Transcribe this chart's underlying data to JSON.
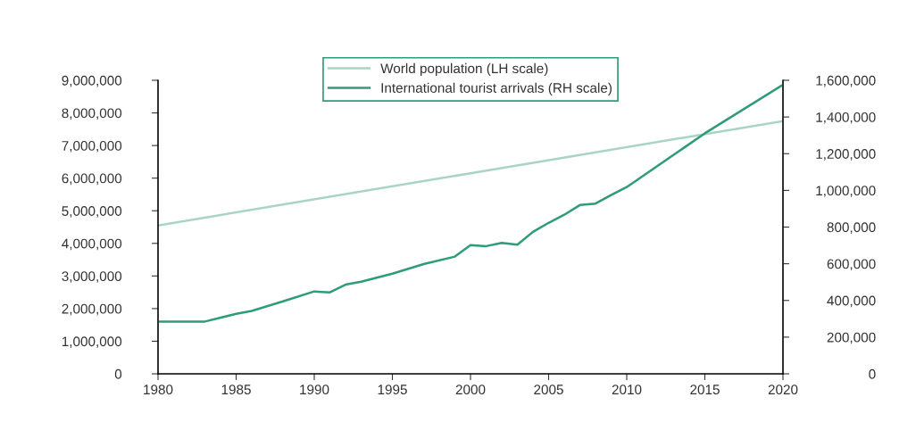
{
  "chart_data": {
    "type": "line",
    "xlim": [
      1980,
      2020
    ],
    "xticks": [
      1980,
      1985,
      1990,
      1995,
      2000,
      2005,
      2010,
      2015,
      2020
    ],
    "ylim": [
      0,
      9000000
    ],
    "yticks": [
      {
        "value": 0,
        "label": "0"
      },
      {
        "value": 1000000,
        "label": "1,000,000"
      },
      {
        "value": 2000000,
        "label": "2,000,000"
      },
      {
        "value": 3000000,
        "label": "3,000,000"
      },
      {
        "value": 4000000,
        "label": "4,000,000"
      },
      {
        "value": 5000000,
        "label": "5,000,000"
      },
      {
        "value": 6000000,
        "label": "6,000,000"
      },
      {
        "value": 7000000,
        "label": "7,000,000"
      },
      {
        "value": 8000000,
        "label": "8,000,000"
      },
      {
        "value": 9000000,
        "label": "9,000,000"
      }
    ],
    "y2lim": [
      0,
      1600000
    ],
    "y2ticks": [
      {
        "value": 0,
        "label": "0"
      },
      {
        "value": 200000,
        "label": "200,000"
      },
      {
        "value": 400000,
        "label": "400,000"
      },
      {
        "value": 600000,
        "label": "600,000"
      },
      {
        "value": 800000,
        "label": "800,000"
      },
      {
        "value": 1000000,
        "label": "1,000,000"
      },
      {
        "value": 1200000,
        "label": "1,200,000"
      },
      {
        "value": 1400000,
        "label": "1,400,000"
      },
      {
        "value": 1600000,
        "label": "1,600,000"
      }
    ],
    "grid": false,
    "legend": "top",
    "marker": "none",
    "line_style": "solid",
    "series": [
      {
        "name": "World population (LH scale)",
        "color": "#a8d5c3",
        "x": [
          1980,
          2000,
          2020
        ],
        "values": [
          4550000,
          6150000,
          7750000
        ]
      },
      {
        "name": "International tourist arrivals (RH scale)",
        "color": "#2e9b7a",
        "axis": "y2",
        "x": [
          1980,
          1983,
          1985,
          1986,
          1988,
          1990,
          1991,
          1992,
          1993,
          1995,
          1997,
          1999,
          2000,
          2001,
          2002,
          2003,
          2004,
          2005,
          2006,
          2007,
          2008,
          2009,
          2010,
          2015,
          2020
        ],
        "values": [
          285000,
          285000,
          327000,
          343000,
          395000,
          449000,
          444000,
          486000,
          502000,
          546000,
          598000,
          639000,
          701000,
          696000,
          714000,
          704000,
          774000,
          823000,
          867000,
          920000,
          928000,
          974000,
          1018000,
          1311000,
          1576000
        ]
      }
    ]
  }
}
